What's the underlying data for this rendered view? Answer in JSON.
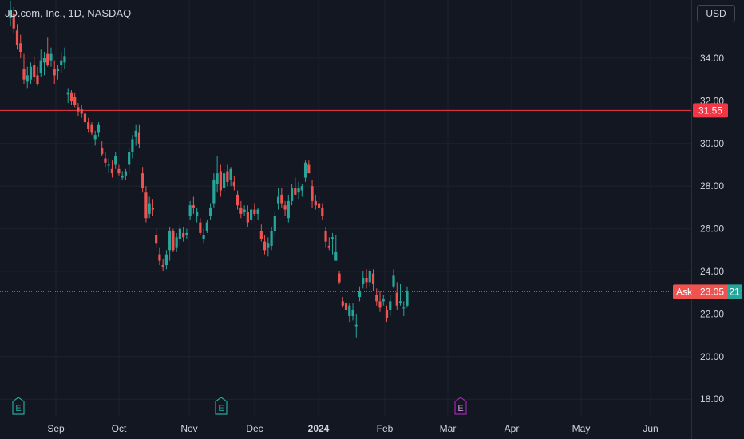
{
  "header": {
    "title": "JD.com, Inc., 1D, NASDAQ",
    "currency_label": "USD"
  },
  "colors": {
    "up": "#26a69a",
    "down": "#ef5350",
    "background": "#131722",
    "grid": "#1e222d",
    "price_line": "#f23645",
    "future_earnings": "#9c27b0"
  },
  "chart_data": {
    "type": "candlestick",
    "title": "JD.com, Inc., 1D, NASDAQ",
    "currency": "USD",
    "y_axis_ticks": [
      "34.00",
      "32.00",
      "30.00",
      "28.00",
      "26.00",
      "24.00",
      "22.00",
      "20.00",
      "18.00"
    ],
    "x_axis_ticks": [
      "Sep",
      "Oct",
      "Nov",
      "Dec",
      "2024",
      "Feb",
      "Mar",
      "Apr",
      "May",
      "Jun"
    ],
    "ylim": [
      17.3,
      36.6
    ],
    "grid": true,
    "horizontal_line": {
      "value": 31.55,
      "label": "31.55"
    },
    "ask": {
      "label": "Ask",
      "value": 23.05,
      "value_label": "23.05",
      "extra_label": "21"
    },
    "earnings_markers": [
      {
        "label": "E",
        "date": "2023-08-16",
        "state": "past"
      },
      {
        "label": "E",
        "date": "2023-11-15",
        "state": "past"
      },
      {
        "label": "E",
        "date": "2024-03-06",
        "state": "upcoming"
      }
    ],
    "ohlc": [
      [
        35.9,
        36.7,
        35.5,
        36.2
      ],
      [
        36.1,
        36.4,
        35.2,
        35.4
      ],
      [
        35.3,
        35.6,
        34.4,
        34.6
      ],
      [
        34.7,
        35.1,
        34.0,
        34.3
      ],
      [
        33.5,
        34.2,
        32.8,
        33.0
      ],
      [
        32.9,
        33.6,
        32.6,
        33.2
      ],
      [
        33.0,
        33.8,
        32.8,
        33.6
      ],
      [
        33.7,
        34.1,
        32.9,
        33.1
      ],
      [
        33.2,
        33.6,
        32.7,
        32.8
      ],
      [
        33.3,
        34.4,
        33.1,
        33.9
      ],
      [
        33.8,
        34.3,
        33.2,
        34.0
      ],
      [
        34.2,
        35.0,
        33.6,
        33.7
      ],
      [
        33.9,
        34.5,
        33.6,
        34.2
      ],
      [
        33.5,
        33.9,
        32.8,
        33.2
      ],
      [
        33.4,
        33.7,
        33.0,
        33.5
      ],
      [
        33.7,
        34.3,
        33.3,
        33.9
      ],
      [
        33.8,
        34.5,
        33.5,
        34.1
      ],
      [
        32.3,
        32.6,
        31.9,
        32.4
      ],
      [
        32.4,
        32.5,
        31.8,
        32.0
      ],
      [
        32.2,
        32.4,
        31.7,
        31.8
      ],
      [
        31.7,
        31.9,
        31.3,
        31.5
      ],
      [
        31.6,
        31.8,
        31.2,
        31.4
      ],
      [
        31.4,
        31.6,
        30.9,
        31.0
      ],
      [
        31.0,
        31.2,
        30.5,
        30.7
      ],
      [
        30.9,
        31.0,
        30.4,
        30.5
      ],
      [
        30.2,
        30.6,
        29.9,
        30.4
      ],
      [
        30.5,
        31.0,
        30.3,
        30.9
      ],
      [
        29.8,
        30.1,
        29.4,
        29.5
      ],
      [
        29.3,
        29.6,
        28.9,
        29.1
      ],
      [
        29.0,
        29.3,
        28.6,
        29.0
      ],
      [
        28.8,
        29.2,
        28.4,
        28.6
      ],
      [
        29.0,
        29.6,
        28.8,
        29.4
      ],
      [
        28.8,
        29.0,
        28.5,
        28.6
      ],
      [
        28.4,
        28.7,
        28.3,
        28.5
      ],
      [
        28.5,
        28.8,
        28.3,
        28.7
      ],
      [
        29.0,
        29.8,
        28.6,
        29.6
      ],
      [
        29.6,
        30.4,
        29.3,
        30.2
      ],
      [
        30.3,
        30.9,
        29.9,
        30.6
      ],
      [
        30.5,
        30.9,
        29.8,
        30.0
      ],
      [
        28.6,
        28.9,
        27.7,
        27.9
      ],
      [
        27.7,
        28.0,
        26.3,
        26.5
      ],
      [
        26.7,
        27.5,
        26.5,
        27.2
      ],
      [
        27.0,
        27.4,
        26.6,
        26.9
      ],
      [
        25.7,
        26.0,
        25.1,
        25.3
      ],
      [
        24.8,
        25.1,
        24.3,
        24.5
      ],
      [
        24.3,
        24.6,
        24.0,
        24.2
      ],
      [
        24.3,
        25.0,
        24.1,
        24.8
      ],
      [
        25.0,
        26.1,
        24.5,
        25.9
      ],
      [
        25.9,
        26.0,
        24.9,
        25.0
      ],
      [
        25.1,
        25.8,
        24.9,
        25.6
      ],
      [
        25.5,
        26.2,
        25.2,
        26.0
      ],
      [
        25.8,
        26.1,
        25.4,
        25.6
      ],
      [
        25.7,
        26.0,
        25.5,
        25.8
      ],
      [
        26.6,
        27.3,
        26.4,
        27.1
      ],
      [
        27.1,
        27.5,
        26.7,
        27.0
      ],
      [
        26.6,
        27.0,
        26.3,
        26.8
      ],
      [
        26.3,
        26.5,
        25.7,
        25.8
      ],
      [
        25.5,
        26.0,
        25.3,
        25.7
      ],
      [
        25.9,
        26.4,
        25.8,
        26.3
      ],
      [
        26.6,
        27.2,
        26.4,
        27.0
      ],
      [
        27.2,
        28.6,
        27.0,
        28.3
      ],
      [
        28.1,
        29.4,
        27.7,
        28.6
      ],
      [
        28.7,
        29.0,
        27.5,
        27.8
      ],
      [
        27.9,
        28.8,
        27.7,
        28.6
      ],
      [
        28.7,
        29.0,
        28.0,
        28.2
      ],
      [
        28.3,
        28.9,
        28.0,
        28.8
      ],
      [
        28.2,
        28.5,
        27.8,
        28.0
      ],
      [
        27.6,
        27.8,
        26.9,
        27.1
      ],
      [
        27.0,
        27.3,
        26.5,
        26.7
      ],
      [
        26.8,
        27.1,
        26.6,
        26.9
      ],
      [
        26.8,
        27.1,
        26.1,
        26.3
      ],
      [
        26.4,
        27.0,
        26.2,
        26.9
      ],
      [
        26.9,
        27.2,
        26.6,
        26.7
      ],
      [
        26.7,
        27.0,
        26.4,
        26.9
      ],
      [
        25.9,
        26.2,
        25.4,
        25.5
      ],
      [
        25.4,
        25.7,
        24.8,
        25.0
      ],
      [
        25.1,
        25.6,
        24.7,
        25.3
      ],
      [
        25.2,
        26.1,
        25.0,
        25.9
      ],
      [
        25.9,
        26.8,
        25.7,
        26.6
      ],
      [
        27.2,
        27.9,
        26.9,
        27.5
      ],
      [
        27.6,
        27.9,
        27.0,
        27.2
      ],
      [
        27.1,
        27.3,
        26.6,
        26.9
      ],
      [
        26.5,
        27.6,
        26.3,
        27.3
      ],
      [
        27.3,
        28.1,
        27.1,
        27.9
      ],
      [
        27.9,
        28.4,
        27.6,
        27.6
      ],
      [
        27.7,
        28.2,
        27.4,
        27.9
      ],
      [
        27.8,
        28.1,
        27.5,
        28.0
      ],
      [
        28.4,
        29.2,
        28.2,
        29.1
      ],
      [
        29.0,
        29.2,
        28.6,
        28.6
      ],
      [
        28.0,
        28.3,
        27.0,
        27.3
      ],
      [
        27.3,
        27.6,
        26.9,
        27.1
      ],
      [
        27.2,
        27.5,
        26.8,
        27.0
      ],
      [
        27.0,
        27.2,
        26.4,
        26.6
      ],
      [
        25.9,
        26.1,
        25.1,
        25.4
      ],
      [
        25.2,
        25.6,
        25.0,
        25.1
      ],
      [
        25.5,
        25.8,
        24.8,
        25.6
      ],
      [
        24.5,
        25.7,
        24.5,
        24.9
      ],
      [
        23.9,
        24.0,
        23.4,
        23.5
      ],
      [
        22.6,
        22.8,
        22.3,
        22.4
      ],
      [
        22.5,
        22.7,
        22.0,
        22.2
      ],
      [
        21.9,
        22.5,
        21.6,
        22.4
      ],
      [
        21.9,
        22.5,
        21.7,
        22.2
      ],
      [
        21.4,
        22.0,
        20.9,
        21.5
      ],
      [
        22.8,
        23.3,
        22.6,
        23.1
      ],
      [
        23.4,
        24.0,
        23.2,
        23.7
      ],
      [
        23.7,
        24.1,
        23.2,
        23.5
      ],
      [
        23.5,
        24.1,
        23.3,
        24.0
      ],
      [
        23.9,
        24.1,
        23.1,
        23.4
      ],
      [
        22.9,
        23.2,
        22.4,
        22.6
      ],
      [
        22.6,
        23.1,
        22.1,
        22.3
      ],
      [
        22.6,
        22.9,
        22.4,
        22.7
      ],
      [
        22.2,
        22.4,
        21.6,
        21.8
      ],
      [
        22.2,
        22.9,
        21.9,
        22.6
      ],
      [
        23.3,
        24.1,
        23.2,
        23.8
      ],
      [
        23.0,
        23.5,
        22.2,
        22.4
      ],
      [
        22.5,
        23.4,
        22.4,
        22.6
      ],
      [
        22.3,
        22.6,
        21.9,
        22.3
      ],
      [
        22.4,
        23.3,
        22.3,
        23.1
      ]
    ]
  }
}
